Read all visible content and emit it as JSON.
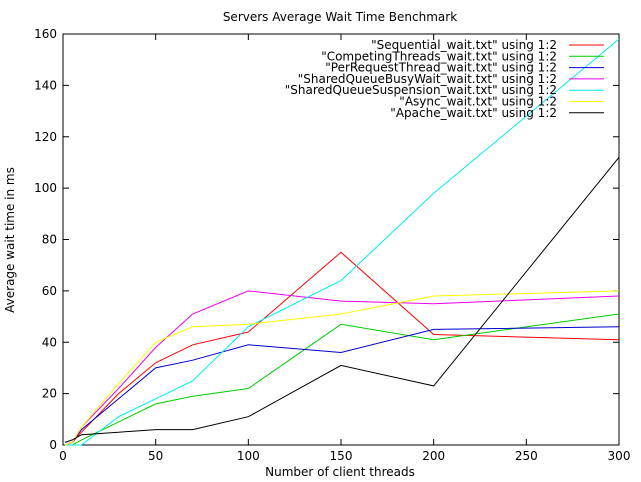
{
  "chart_data": {
    "type": "line",
    "title": "Servers Average Wait Time Benchmark",
    "xlabel": "Number of client threads",
    "ylabel": "Average wait time in ms",
    "xlim": [
      0,
      300
    ],
    "ylim": [
      0,
      160
    ],
    "xticks": [
      0,
      50,
      100,
      150,
      200,
      250,
      300
    ],
    "yticks": [
      0,
      20,
      40,
      60,
      80,
      100,
      120,
      140,
      160
    ],
    "grid": false,
    "legend": "top-right",
    "series": [
      {
        "name": "\"Sequential_wait.txt\" using 1:2",
        "color": "#ff0000",
        "x": [
          1,
          5,
          10,
          30,
          50,
          70,
          100,
          150,
          200,
          300
        ],
        "y": [
          0,
          1,
          5,
          20,
          32,
          39,
          44,
          75,
          43,
          41
        ]
      },
      {
        "name": "\"CompetingThreads_wait.txt\" using 1:2",
        "color": "#00cc00",
        "x": [
          1,
          5,
          10,
          30,
          50,
          70,
          100,
          150,
          200,
          300
        ],
        "y": [
          0,
          0,
          2,
          9,
          16,
          19,
          22,
          47,
          41,
          51
        ]
      },
      {
        "name": "\"PerRequestThread_wait.txt\" using 1:2",
        "color": "#0000cc",
        "x": [
          1,
          5,
          10,
          30,
          50,
          70,
          100,
          150,
          200,
          300
        ],
        "y": [
          0,
          1,
          6,
          18,
          30,
          33,
          39,
          36,
          45,
          46
        ]
      },
      {
        "name": "\"SharedQueueBusyWait_wait.txt\" using 1:2",
        "color": "#ee00ee",
        "x": [
          1,
          5,
          10,
          30,
          50,
          70,
          100,
          150,
          200,
          300
        ],
        "y": [
          0,
          1,
          7,
          22,
          38,
          51,
          60,
          56,
          55,
          58
        ]
      },
      {
        "name": "\"SharedQueueSuspension_wait.txt\" using 1:2",
        "color": "#00eeee",
        "x": [
          1,
          5,
          10,
          30,
          50,
          70,
          100,
          150,
          200,
          300
        ],
        "y": [
          0,
          0,
          0,
          11,
          18,
          25,
          46,
          64,
          98,
          158
        ]
      },
      {
        "name": "\"Async_wait.txt\" using 1:2",
        "color": "#ffff00",
        "x": [
          1,
          5,
          10,
          30,
          50,
          70,
          100,
          150,
          200,
          300
        ],
        "y": [
          0,
          1,
          7,
          24,
          40,
          46,
          47,
          51,
          58,
          60
        ]
      },
      {
        "name": "\"Apache_wait.txt\" using 1:2",
        "color": "#000000",
        "x": [
          1,
          5,
          10,
          30,
          50,
          70,
          100,
          150,
          200,
          300
        ],
        "y": [
          1,
          2,
          4,
          5,
          6,
          6,
          11,
          31,
          23,
          112
        ]
      }
    ]
  }
}
